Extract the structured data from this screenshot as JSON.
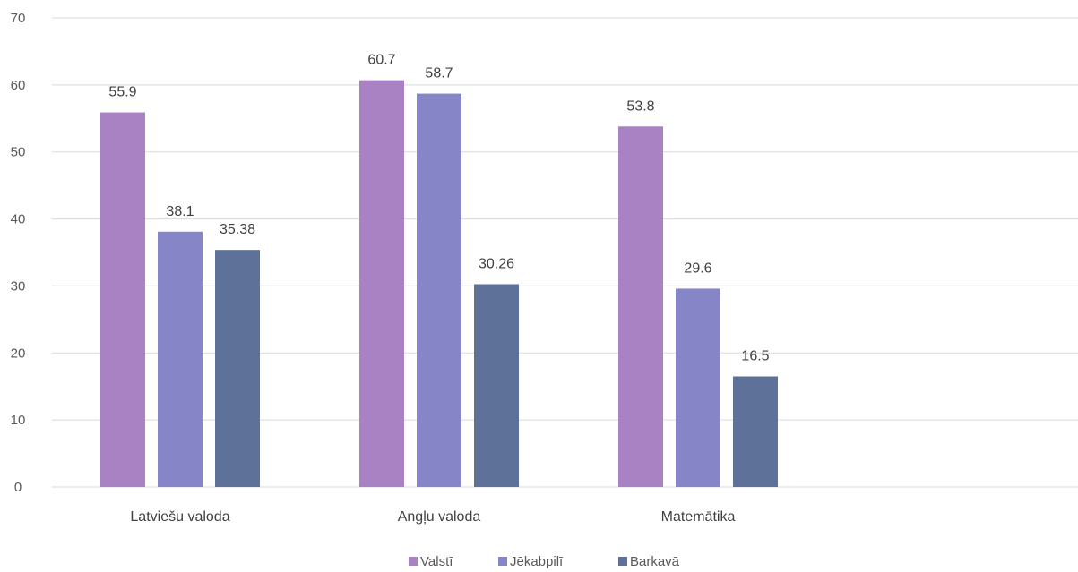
{
  "chart_data": {
    "type": "bar",
    "title": "",
    "xlabel": "",
    "ylabel": "",
    "categories": [
      "Latviešu valoda",
      "Angļu valoda",
      "Matemātika"
    ],
    "series": [
      {
        "name": "Valstī",
        "color": "#a982c4",
        "values": [
          55.9,
          60.7,
          53.8
        ]
      },
      {
        "name": "Jēkabpilī",
        "color": "#8685c7",
        "values": [
          38.1,
          58.7,
          29.6
        ]
      },
      {
        "name": "Barkavā",
        "color": "#5e7299",
        "values": [
          35.38,
          30.26,
          16.5
        ]
      }
    ],
    "data_labels": [
      [
        "55.9",
        "60.7",
        "53.8"
      ],
      [
        "38.1",
        "58.7",
        "29.6"
      ],
      [
        "35.38",
        "30.26",
        "16.5"
      ]
    ],
    "ylim": [
      0,
      70
    ],
    "yticks": [
      "0",
      "10",
      "20",
      "30",
      "40",
      "50",
      "60",
      "70"
    ],
    "grid": true,
    "legend": "bottom-center"
  }
}
